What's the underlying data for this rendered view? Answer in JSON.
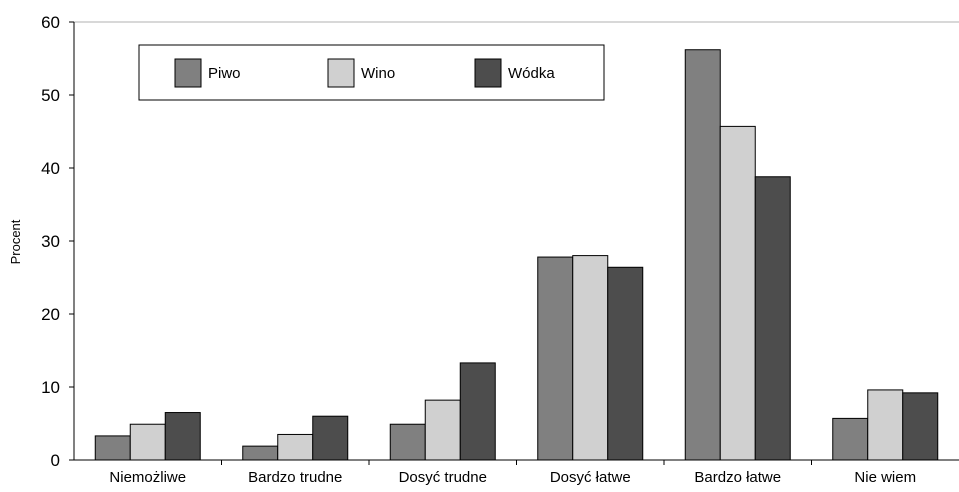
{
  "chart_data": {
    "type": "bar",
    "title": "",
    "xlabel": "",
    "ylabel": "Procent",
    "ylim": [
      0,
      60
    ],
    "yticks": [
      0,
      10,
      20,
      30,
      40,
      50,
      60
    ],
    "grid": false,
    "legend_position": "top-left",
    "categories": [
      "Niemożliwe",
      "Bardzo trudne",
      "Dosyć trudne",
      "Dosyć łatwe",
      "Bardzo łatwe",
      "Nie wiem"
    ],
    "series": [
      {
        "name": "Piwo",
        "color": "#808080",
        "values": [
          3.3,
          1.9,
          4.9,
          27.8,
          56.2,
          5.7
        ]
      },
      {
        "name": "Wino",
        "color": "#d0d0d0",
        "values": [
          4.9,
          3.5,
          8.2,
          28.0,
          45.7,
          9.6
        ]
      },
      {
        "name": "Wódka",
        "color": "#4d4d4d",
        "values": [
          6.5,
          6.0,
          13.3,
          26.4,
          38.8,
          9.2
        ]
      }
    ]
  }
}
